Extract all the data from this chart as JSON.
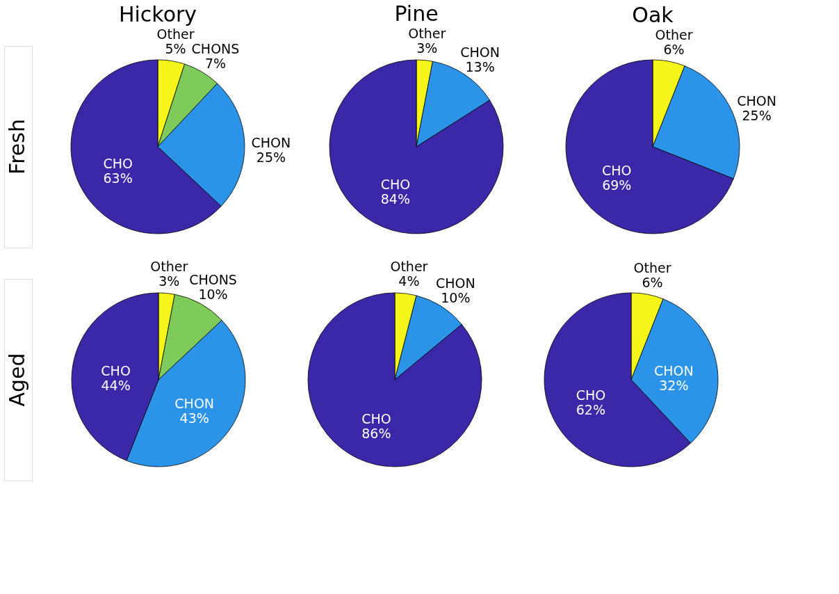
{
  "chart_data": [
    {
      "type": "pie",
      "title": "Hickory",
      "ylabel": "Fresh",
      "categories": [
        "Other",
        "CHONS",
        "CHON",
        "CHO"
      ],
      "values": [
        5,
        7,
        25,
        63
      ],
      "value_labels": [
        "5%",
        "7%",
        "25%",
        "63%"
      ],
      "colors": [
        "#f5f51a",
        "#7ecb5b",
        "#2b94e8",
        "#3b28a8"
      ]
    },
    {
      "type": "pie",
      "title": "Pine",
      "categories": [
        "Other",
        "CHON",
        "CHO"
      ],
      "values": [
        3,
        13,
        84
      ],
      "value_labels": [
        "3%",
        "13%",
        "84%"
      ],
      "colors": [
        "#f5f51a",
        "#2b94e8",
        "#3b28a8"
      ]
    },
    {
      "type": "pie",
      "title": "Oak",
      "categories": [
        "Other",
        "CHON",
        "CHO"
      ],
      "values": [
        6,
        25,
        69
      ],
      "value_labels": [
        "6%",
        "25%",
        "69%"
      ],
      "colors": [
        "#f5f51a",
        "#2b94e8",
        "#3b28a8"
      ]
    },
    {
      "type": "pie",
      "ylabel": "Aged",
      "categories": [
        "Other",
        "CHONS",
        "CHON",
        "CHO"
      ],
      "values": [
        3,
        10,
        43,
        44
      ],
      "value_labels": [
        "3%",
        "10%",
        "43%",
        "44%"
      ],
      "colors": [
        "#f5f51a",
        "#7ecb5b",
        "#2b94e8",
        "#3b28a8"
      ]
    },
    {
      "type": "pie",
      "categories": [
        "Other",
        "CHON",
        "CHO"
      ],
      "values": [
        4,
        10,
        86
      ],
      "value_labels": [
        "4%",
        "10%",
        "86%"
      ],
      "colors": [
        "#f5f51a",
        "#2b94e8",
        "#3b28a8"
      ]
    },
    {
      "type": "pie",
      "categories": [
        "Other",
        "CHON",
        "CHO"
      ],
      "values": [
        6,
        32,
        62
      ],
      "value_labels": [
        "6%",
        "32%",
        "62%"
      ],
      "colors": [
        "#f5f51a",
        "#2b94e8",
        "#3b28a8"
      ]
    }
  ]
}
